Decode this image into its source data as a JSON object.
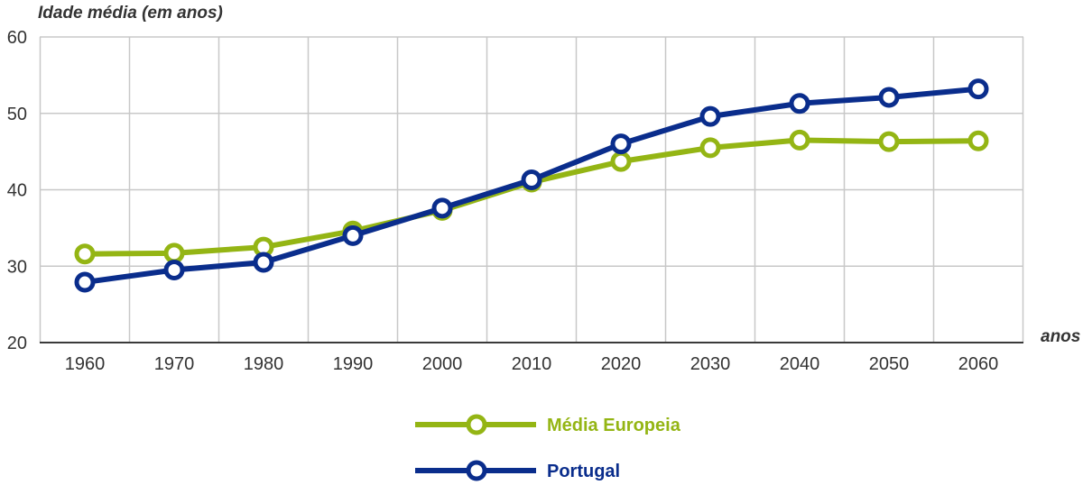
{
  "chart_data": {
    "type": "line",
    "ylabel": "Idade média (em anos)",
    "xlabel": "anos",
    "x": [
      1960,
      1970,
      1980,
      1990,
      2000,
      2010,
      2020,
      2030,
      2040,
      2050,
      2060
    ],
    "xticks": [
      "1960",
      "1970",
      "1980",
      "1990",
      "2000",
      "2010",
      "2020",
      "2030",
      "2040",
      "2050",
      "2060"
    ],
    "ylim": [
      20,
      60
    ],
    "yticks": [
      20,
      30,
      40,
      50,
      60
    ],
    "grid": true,
    "legend_position": "bottom-center",
    "series": [
      {
        "name": "Média Europeia",
        "color": "#94b514",
        "values": [
          31.6,
          31.7,
          32.5,
          34.6,
          37.3,
          41.0,
          43.7,
          45.5,
          46.5,
          46.3,
          46.4
        ]
      },
      {
        "name": "Portugal",
        "color": "#0a2d8c",
        "values": [
          27.9,
          29.5,
          30.5,
          34.0,
          37.6,
          41.3,
          46.0,
          49.6,
          51.3,
          52.1,
          53.2
        ]
      }
    ]
  }
}
